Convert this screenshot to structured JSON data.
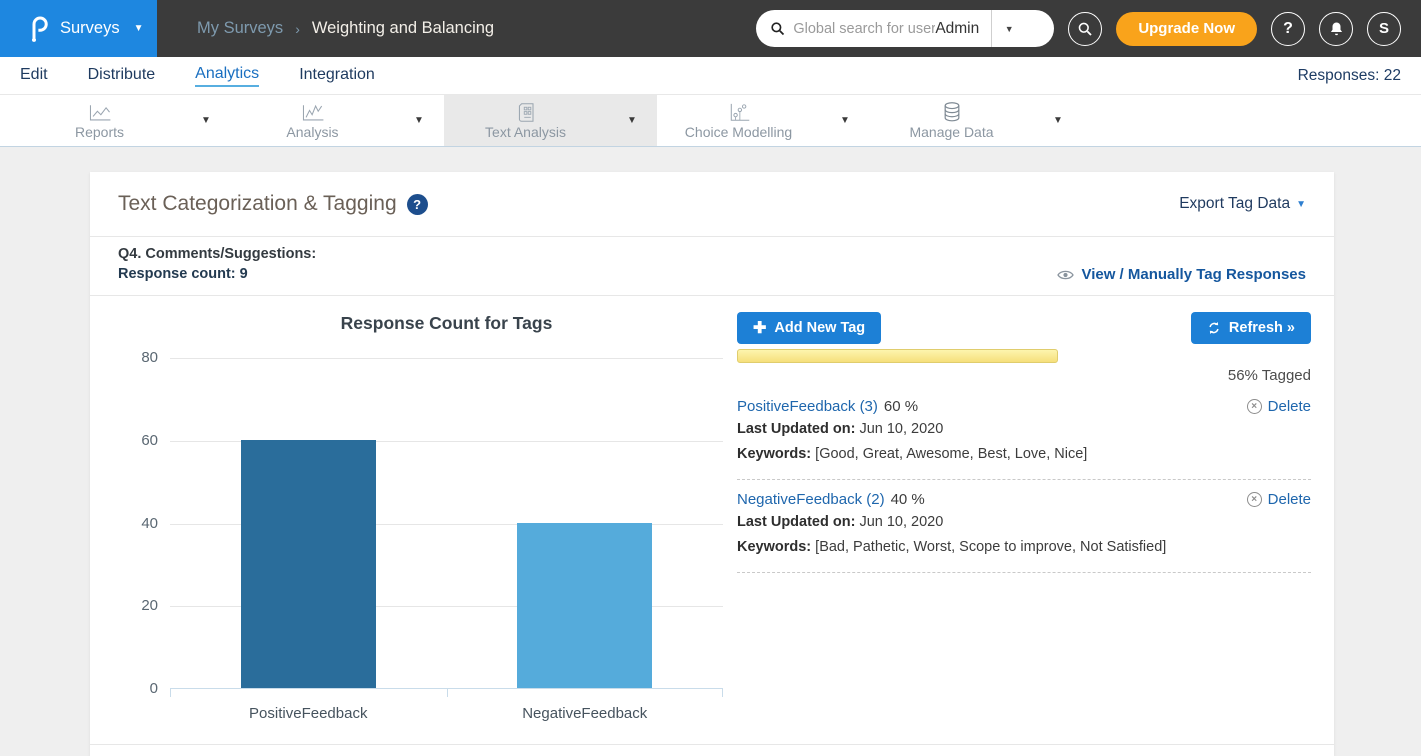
{
  "header": {
    "product": "Surveys",
    "breadcrumb": {
      "parent": "My Surveys",
      "separator": "›",
      "current": "Weighting and Balancing"
    },
    "search_placeholder": "Global search for user",
    "search_scope": "Admin",
    "upgrade_label": "Upgrade Now",
    "help_label": "?",
    "avatar_initial": "S",
    "colors": {
      "brand_blue": "#1e87e0",
      "header_bg": "#3b3b3b",
      "upgrade_orange": "#f9a31b"
    }
  },
  "nav": {
    "items": [
      {
        "label": "Edit",
        "active": false
      },
      {
        "label": "Distribute",
        "active": false
      },
      {
        "label": "Analytics",
        "active": true
      },
      {
        "label": "Integration",
        "active": false
      }
    ],
    "responses_label": "Responses: 22"
  },
  "tabs": [
    {
      "label": "Reports",
      "icon": "line-chart-icon",
      "active": false
    },
    {
      "label": "Analysis",
      "icon": "trend-chart-icon",
      "active": false
    },
    {
      "label": "Text Analysis",
      "icon": "document-grid-icon",
      "active": true
    },
    {
      "label": "Choice Modelling",
      "icon": "scatter-chart-icon",
      "active": false
    },
    {
      "label": "Manage Data",
      "icon": "database-icon",
      "active": false
    }
  ],
  "panel": {
    "title": "Text Categorization & Tagging",
    "help_badge": "?",
    "export_label": "Export Tag Data",
    "question_title": "Q4. Comments/Suggestions:",
    "response_count": "Response count: 9",
    "view_link": "View / Manually Tag Responses"
  },
  "chart_data": {
    "type": "bar",
    "title": "Response Count for Tags",
    "categories": [
      "PositiveFeedback",
      "NegativeFeedback"
    ],
    "values": [
      60,
      40
    ],
    "colors": [
      "#2a6d9b",
      "#55abdb"
    ],
    "xlabel": "",
    "ylabel": "",
    "ylim": [
      0,
      80
    ],
    "yticks": [
      0,
      20,
      40,
      60,
      80
    ],
    "grid": true,
    "legend": false
  },
  "tagging": {
    "add_button_label": "Add New Tag",
    "refresh_button_label": "Refresh »",
    "progress": {
      "percent": 56,
      "label": "56% Tagged",
      "fill_color": "#f9e48b"
    },
    "tags": [
      {
        "name": "PositiveFeedback (3)",
        "percent": "60 %",
        "last_updated_label": "Last Updated on:",
        "last_updated": "Jun 10, 2020",
        "keywords_label": "Keywords:",
        "keywords": "[Good, Great, Awesome, Best, Love, Nice]",
        "delete_label": "Delete"
      },
      {
        "name": "NegativeFeedback (2)",
        "percent": "40 %",
        "last_updated_label": "Last Updated on:",
        "last_updated": "Jun 10, 2020",
        "keywords_label": "Keywords:",
        "keywords": "[Bad, Pathetic, Worst, Scope to improve, Not Satisfied]",
        "delete_label": "Delete"
      }
    ]
  }
}
